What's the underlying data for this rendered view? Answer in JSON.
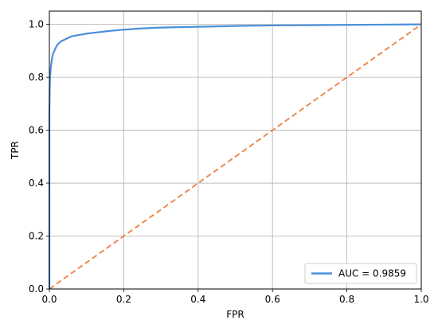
{
  "chart_data": {
    "type": "line",
    "xlabel": "FPR",
    "ylabel": "TPR",
    "xlim": [
      0.0,
      1.0
    ],
    "ylim": [
      0.0,
      1.05
    ],
    "xticks": [
      "0.0",
      "0.2",
      "0.4",
      "0.6",
      "0.8",
      "1.0"
    ],
    "yticks": [
      "0.0",
      "0.2",
      "0.4",
      "0.6",
      "0.8",
      "1.0"
    ],
    "grid": true,
    "legend_position": "lower-right",
    "series": [
      {
        "name": "AUC = 0.9859",
        "color": "#4a90d9",
        "style": "solid",
        "x": [
          0.0,
          0.0,
          0.001,
          0.002,
          0.004,
          0.007,
          0.01,
          0.015,
          0.02,
          0.03,
          0.045,
          0.06,
          0.08,
          0.1,
          0.13,
          0.16,
          0.2,
          0.25,
          0.3,
          0.4,
          0.5,
          0.6,
          0.7,
          0.8,
          0.9,
          1.0
        ],
        "y": [
          0.0,
          0.66,
          0.76,
          0.8,
          0.84,
          0.87,
          0.89,
          0.905,
          0.92,
          0.935,
          0.945,
          0.955,
          0.96,
          0.965,
          0.97,
          0.975,
          0.98,
          0.985,
          0.988,
          0.991,
          0.994,
          0.996,
          0.997,
          0.998,
          0.999,
          1.0
        ]
      },
      {
        "name": "",
        "color": "#ee8a50",
        "style": "dashed",
        "x": [
          0.0,
          1.0
        ],
        "y": [
          0.0,
          1.0
        ]
      }
    ]
  }
}
